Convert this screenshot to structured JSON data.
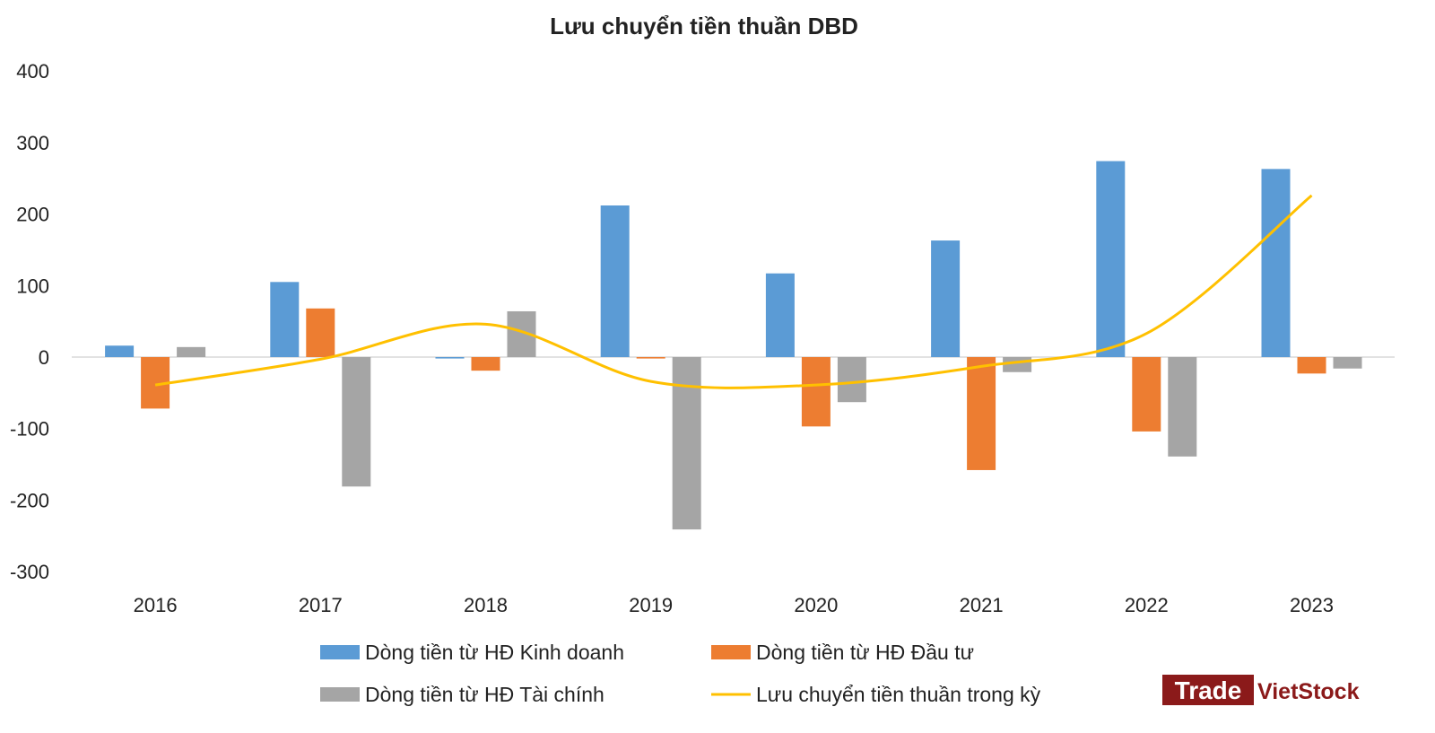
{
  "chart_data": {
    "type": "bar",
    "title": "Lưu chuyển tiền thuần DBD",
    "categories": [
      "2016",
      "2017",
      "2018",
      "2019",
      "2020",
      "2021",
      "2022",
      "2023"
    ],
    "ylim": [
      -300,
      400
    ],
    "yticks": [
      400,
      300,
      200,
      100,
      0,
      -100,
      -200,
      -300
    ],
    "grid": false,
    "legend_position": "bottom",
    "series": [
      {
        "name": "Dòng tiền từ HĐ Kinh doanh",
        "type": "bar",
        "color": "#5B9BD5",
        "values": [
          16,
          105,
          -2,
          212,
          117,
          163,
          274,
          263
        ]
      },
      {
        "name": "Dòng tiền từ HĐ Đầu tư",
        "type": "bar",
        "color": "#ED7D31",
        "values": [
          -72,
          68,
          -19,
          -2,
          -97,
          -158,
          -104,
          -23
        ]
      },
      {
        "name": "Dòng tiền từ HĐ Tài chính",
        "type": "bar",
        "color": "#A5A5A5",
        "values": [
          14,
          -181,
          64,
          -241,
          -63,
          -21,
          -139,
          -16
        ]
      },
      {
        "name": "Lưu chuyển tiền thuần trong kỳ",
        "type": "line",
        "color": "#FFC000",
        "values": [
          -39,
          -3,
          46,
          -34,
          -39,
          -13,
          33,
          226
        ]
      }
    ]
  },
  "logo": {
    "part1": "Trade",
    "part2": "VietStock",
    "color": "#8B1A1A"
  }
}
